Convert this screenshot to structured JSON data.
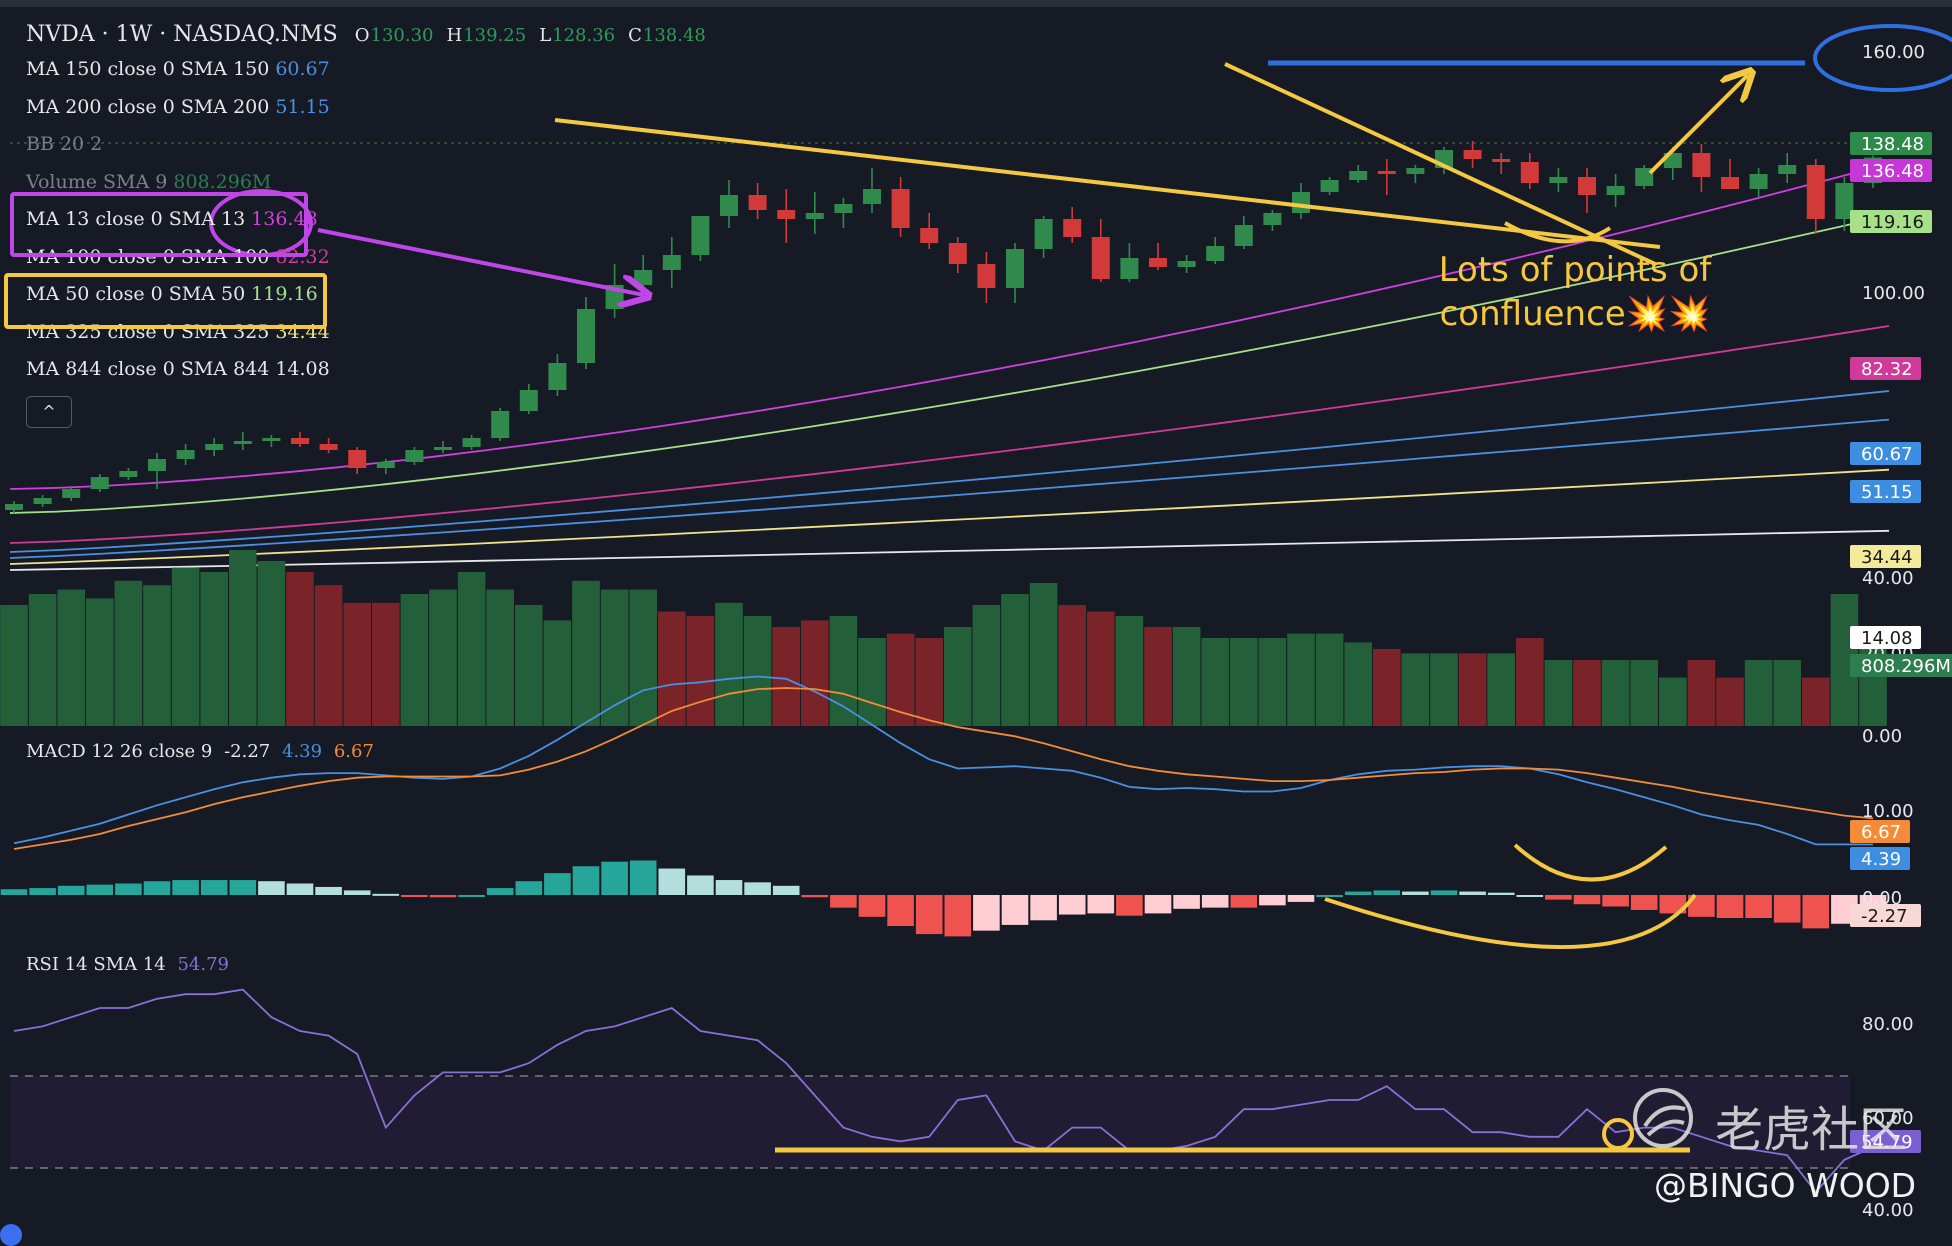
{
  "header": {
    "symbol_line": "NVDA · 1W · NASDAQ.NMS",
    "open_label": "O",
    "open": "130.30",
    "high_label": "H",
    "high": "139.25",
    "low_label": "L",
    "low": "128.36",
    "close_label": "C",
    "close": "138.48"
  },
  "legend": [
    {
      "label": "MA 150 close 0 SMA 150",
      "value": "60.67",
      "color": "#4a90e2"
    },
    {
      "label": "MA 200 close 0 SMA 200",
      "value": "51.15",
      "color": "#4a90e2"
    },
    {
      "label": "BB 20 2",
      "value": "",
      "color": "#6d7380"
    },
    {
      "label": "Volume SMA 9",
      "value": "808.296M",
      "color": "#2e7d4f"
    },
    {
      "label": "MA 13 close 0 SMA 13",
      "value": "136.48",
      "color": "#d040e0"
    },
    {
      "label": "MA 100 close 0 SMA 100",
      "value": "82.32",
      "color": "#d03a9a"
    },
    {
      "label": "MA 50 close 0 SMA 50",
      "value": "119.16",
      "color": "#a5e08a"
    },
    {
      "label": "MA 325 close 0 SMA 325",
      "value": "34.44",
      "color": "#f0e28a"
    },
    {
      "label": "MA 844 close 0 SMA 844",
      "value": "14.08",
      "color": "#e8e8e8"
    }
  ],
  "macd_legend": {
    "label": "MACD 12 26 close 9",
    "v1": "-2.27",
    "v2": "4.39",
    "v3": "6.67",
    "c1": "#e8e8e8",
    "c2": "#4a90e2",
    "c3": "#f28c38"
  },
  "rsi_legend": {
    "label": "RSI 14 SMA 14",
    "value": "54.79",
    "color": "#8a6fd8"
  },
  "collapse_icon": "chevron-up-icon",
  "annotation": {
    "line1": "Lots of points of",
    "line2": "confluence",
    "sparks": "💥💥"
  },
  "watermark": {
    "brand_cn": "老虎社区",
    "user": "@BINGO WOOD",
    "brand_icon": "tiger-logo-icon"
  },
  "colors": {
    "up": "#2f8a4c",
    "down": "#d23939",
    "annotation_yellow": "#f5c842",
    "annotation_purple": "#c046e8",
    "annotation_blue": "#2f6fe0"
  },
  "chart_data": [
    {
      "type": "candlestick",
      "title": "NVDA · 1W · NASDAQ.NMS",
      "ylim": [
        0,
        175
      ],
      "axis_ticks": [
        "160.00",
        "100.00",
        "40.00",
        "20.00",
        "0.00"
      ],
      "axis_tick_values": [
        160,
        100,
        40,
        20,
        0
      ],
      "candles": [
        [
          21,
          24,
          20,
          23
        ],
        [
          23,
          26,
          22,
          25
        ],
        [
          25,
          29,
          24,
          28
        ],
        [
          28,
          33,
          27,
          32
        ],
        [
          32,
          35,
          31,
          34
        ],
        [
          34,
          40,
          28,
          38
        ],
        [
          38,
          43,
          36,
          41
        ],
        [
          41,
          45,
          39,
          43
        ],
        [
          43,
          47,
          41,
          44
        ],
        [
          44,
          46,
          42,
          45
        ],
        [
          45,
          47,
          42,
          43
        ],
        [
          43,
          45,
          40,
          41
        ],
        [
          41,
          42,
          33,
          35
        ],
        [
          35,
          38,
          33,
          37
        ],
        [
          37,
          42,
          36,
          41
        ],
        [
          41,
          44,
          40,
          42
        ],
        [
          42,
          46,
          41,
          45
        ],
        [
          45,
          55,
          44,
          54
        ],
        [
          54,
          63,
          53,
          61
        ],
        [
          61,
          73,
          59,
          70
        ],
        [
          70,
          92,
          68,
          88
        ],
        [
          88,
          103,
          85,
          96
        ],
        [
          96,
          106,
          92,
          101
        ],
        [
          101,
          112,
          95,
          106
        ],
        [
          106,
          118,
          104,
          119
        ],
        [
          119,
          131,
          115,
          126
        ],
        [
          126,
          130,
          118,
          121
        ],
        [
          121,
          128,
          110,
          118
        ],
        [
          118,
          127,
          113,
          120
        ],
        [
          120,
          125,
          115,
          123
        ],
        [
          123,
          135,
          120,
          128
        ],
        [
          128,
          132,
          112,
          115
        ],
        [
          115,
          120,
          108,
          110
        ],
        [
          110,
          112,
          100,
          103
        ],
        [
          103,
          107,
          90,
          95
        ],
        [
          95,
          110,
          90,
          108
        ],
        [
          108,
          119,
          105,
          118
        ],
        [
          118,
          122,
          110,
          112
        ],
        [
          112,
          118,
          97,
          98
        ],
        [
          98,
          110,
          97,
          105
        ],
        [
          105,
          110,
          101,
          102
        ],
        [
          102,
          106,
          100,
          104
        ],
        [
          104,
          112,
          103,
          109
        ],
        [
          109,
          119,
          108,
          116
        ],
        [
          116,
          121,
          114,
          120
        ],
        [
          120,
          130,
          118,
          127
        ],
        [
          127,
          132,
          126,
          131
        ],
        [
          131,
          136,
          130,
          134
        ],
        [
          134,
          138,
          126,
          133
        ],
        [
          133,
          136,
          130,
          135
        ],
        [
          135,
          142,
          133,
          141
        ],
        [
          141,
          144,
          135,
          138
        ],
        [
          138,
          140,
          133,
          137
        ],
        [
          137,
          140,
          128,
          130
        ],
        [
          130,
          135,
          127,
          132
        ],
        [
          132,
          135,
          120,
          126
        ],
        [
          126,
          133,
          122,
          129
        ],
        [
          129,
          136,
          128,
          135
        ],
        [
          135,
          142,
          131,
          140
        ],
        [
          140,
          143,
          127,
          132
        ],
        [
          132,
          138,
          129,
          128
        ],
        [
          128,
          135,
          125,
          133
        ],
        [
          133,
          140,
          130,
          136
        ],
        [
          136,
          138,
          113,
          118
        ],
        [
          118,
          132,
          114,
          130
        ],
        [
          130,
          139.25,
          128.36,
          138.48
        ]
      ],
      "moving_averages": [
        {
          "name": "MA 13",
          "last": 136.48,
          "color": "#d040e0"
        },
        {
          "name": "MA 50",
          "last": 119.16,
          "color": "#a5e08a"
        },
        {
          "name": "MA 100",
          "last": 82.32,
          "color": "#d03a9a"
        },
        {
          "name": "MA 150",
          "last": 60.67,
          "color": "#4a90e2"
        },
        {
          "name": "MA 200",
          "last": 51.15,
          "color": "#4a90e2"
        },
        {
          "name": "MA 325",
          "last": 34.44,
          "color": "#f0e28a"
        },
        {
          "name": "MA 844",
          "last": 14.08,
          "color": "#e8e8e8"
        }
      ],
      "price_tags": [
        {
          "value": "138.48",
          "bg": "#2e8a4a",
          "fg": "#ffffff"
        },
        {
          "value": "136.48",
          "bg": "#c737d8",
          "fg": "#ffffff"
        },
        {
          "value": "119.16",
          "bg": "#a6e08a",
          "fg": "#1a1a1a"
        },
        {
          "value": "82.32",
          "bg": "#d03a9a",
          "fg": "#ffffff"
        },
        {
          "value": "60.67",
          "bg": "#3d8ee0",
          "fg": "#ffffff"
        },
        {
          "value": "51.15",
          "bg": "#3d8ee0",
          "fg": "#ffffff"
        },
        {
          "value": "34.44",
          "bg": "#f3ea9a",
          "fg": "#1a1a1a"
        },
        {
          "value": "14.08",
          "bg": "#ffffff",
          "fg": "#1a1a1a"
        },
        {
          "value": "808.296M",
          "bg": "#2e7d4f",
          "fg": "#ffffff"
        }
      ]
    },
    {
      "type": "bar",
      "title": "Volume",
      "note": "relative volume",
      "values": [
        55,
        60,
        62,
        58,
        66,
        64,
        72,
        70,
        80,
        75,
        70,
        64,
        56,
        56,
        60,
        62,
        70,
        62,
        55,
        48,
        66,
        62,
        62,
        52,
        50,
        56,
        50,
        45,
        48,
        50,
        40,
        42,
        40,
        45,
        55,
        60,
        65,
        55,
        52,
        50,
        45,
        45,
        40,
        40,
        40,
        42,
        42,
        38,
        35,
        33,
        33,
        33,
        33,
        40,
        30,
        30,
        30,
        30,
        22,
        30,
        22,
        30,
        30,
        22,
        60,
        45
      ],
      "up": [
        1,
        1,
        1,
        1,
        1,
        1,
        1,
        1,
        1,
        1,
        0,
        0,
        0,
        0,
        1,
        1,
        1,
        1,
        1,
        1,
        1,
        1,
        1,
        0,
        0,
        1,
        1,
        0,
        0,
        1,
        1,
        0,
        0,
        1,
        1,
        1,
        1,
        0,
        0,
        1,
        0,
        1,
        1,
        1,
        1,
        1,
        1,
        1,
        0,
        1,
        1,
        0,
        1,
        0,
        1,
        0,
        1,
        1,
        1,
        0,
        0,
        1,
        1,
        0,
        1,
        1
      ]
    },
    {
      "type": "line",
      "title": "MACD 12 26 close 9",
      "axis_ticks": [
        "10.00",
        "0.00"
      ],
      "axis_tick_values": [
        10,
        0
      ],
      "ylim": [
        -5,
        20
      ],
      "tags": [
        {
          "value": "6.67",
          "bg": "#f28c38"
        },
        {
          "value": "4.39",
          "bg": "#3d8ee0"
        },
        {
          "value": "-2.27",
          "bg": "#f8d7d7",
          "fg": "#1a1a1a"
        }
      ],
      "series": [
        {
          "name": "MACD",
          "color": "#4a90e2",
          "values": [
            4.5,
            5,
            5.6,
            6.2,
            7,
            7.8,
            8.5,
            9.2,
            9.8,
            10.2,
            10.5,
            10.6,
            10.6,
            10.4,
            10.2,
            10.1,
            10.3,
            11,
            12.1,
            13.5,
            15,
            16.5,
            17.8,
            18.3,
            18.5,
            18.8,
            19,
            18.8,
            17.7,
            16.4,
            14.8,
            13.2,
            11.8,
            11,
            11.1,
            11.2,
            11,
            10.8,
            10.2,
            9.4,
            9.2,
            9.3,
            9.2,
            9,
            9,
            9.3,
            10,
            10.5,
            10.8,
            10.9,
            11.1,
            11.2,
            11.2,
            11,
            10.5,
            9.8,
            9.2,
            8.5,
            7.8,
            7,
            6.5,
            6.1,
            5.3,
            4.4,
            4.4,
            4.39
          ]
        },
        {
          "name": "Signal",
          "color": "#f28c38",
          "values": [
            4,
            4.4,
            4.8,
            5.3,
            6,
            6.6,
            7.2,
            7.9,
            8.5,
            9,
            9.5,
            9.9,
            10.2,
            10.3,
            10.3,
            10.3,
            10.3,
            10.4,
            10.9,
            11.6,
            12.5,
            13.6,
            14.8,
            16,
            16.8,
            17.5,
            17.9,
            18,
            17.9,
            17.5,
            16.7,
            15.9,
            15.2,
            14.6,
            14.2,
            13.8,
            13.2,
            12.5,
            11.8,
            11.2,
            10.8,
            10.5,
            10.3,
            10.1,
            9.9,
            9.9,
            10,
            10.2,
            10.4,
            10.6,
            10.7,
            10.9,
            11,
            11,
            10.9,
            10.6,
            10.2,
            9.8,
            9.4,
            8.9,
            8.5,
            8.1,
            7.7,
            7.3,
            6.9,
            6.67
          ]
        }
      ],
      "histogram": [
        0.5,
        0.6,
        0.8,
        0.9,
        1,
        1.2,
        1.3,
        1.3,
        1.3,
        1.2,
        1,
        0.7,
        0.4,
        0.1,
        -0.1,
        -0.2,
        0,
        0.6,
        1.2,
        1.9,
        2.5,
        2.9,
        3,
        2.3,
        1.7,
        1.3,
        1.1,
        0.8,
        -0.2,
        -1.1,
        -1.9,
        -2.7,
        -3.4,
        -3.6,
        -3.1,
        -2.6,
        -2.2,
        -1.7,
        -1.6,
        -1.8,
        -1.6,
        -1.2,
        -1.1,
        -1.1,
        -0.9,
        -0.6,
        0,
        0.3,
        0.4,
        0.3,
        0.4,
        0.3,
        0.2,
        0,
        -0.4,
        -0.8,
        -1,
        -1.3,
        -1.6,
        -1.9,
        -2,
        -2,
        -2.4,
        -2.9,
        -2.5,
        -2.27
      ]
    },
    {
      "type": "line",
      "title": "RSI 14 SMA 14",
      "axis_ticks": [
        "80.00",
        "60.00",
        "40.00"
      ],
      "axis_tick_values": [
        80,
        60,
        40
      ],
      "ylim": [
        38,
        95
      ],
      "tags": [
        {
          "value": "54.79",
          "bg": "#7b5fd0"
        }
      ],
      "series": [
        {
          "name": "RSI",
          "color": "#8a6fd8",
          "values": [
            80,
            81,
            83,
            85,
            85,
            87,
            88,
            88,
            89,
            83,
            80,
            79,
            75,
            59,
            66,
            71,
            71,
            71,
            73,
            77,
            80,
            81,
            83,
            85,
            80,
            79,
            78,
            73,
            66,
            59,
            57,
            56,
            57,
            65,
            66,
            56,
            54,
            59,
            59,
            54,
            54,
            55,
            57,
            63,
            63,
            64,
            65,
            65,
            68,
            63,
            63,
            58,
            58,
            57,
            57,
            63,
            58,
            59,
            59,
            57,
            55,
            54,
            53,
            45,
            52,
            54.79
          ]
        }
      ]
    }
  ]
}
